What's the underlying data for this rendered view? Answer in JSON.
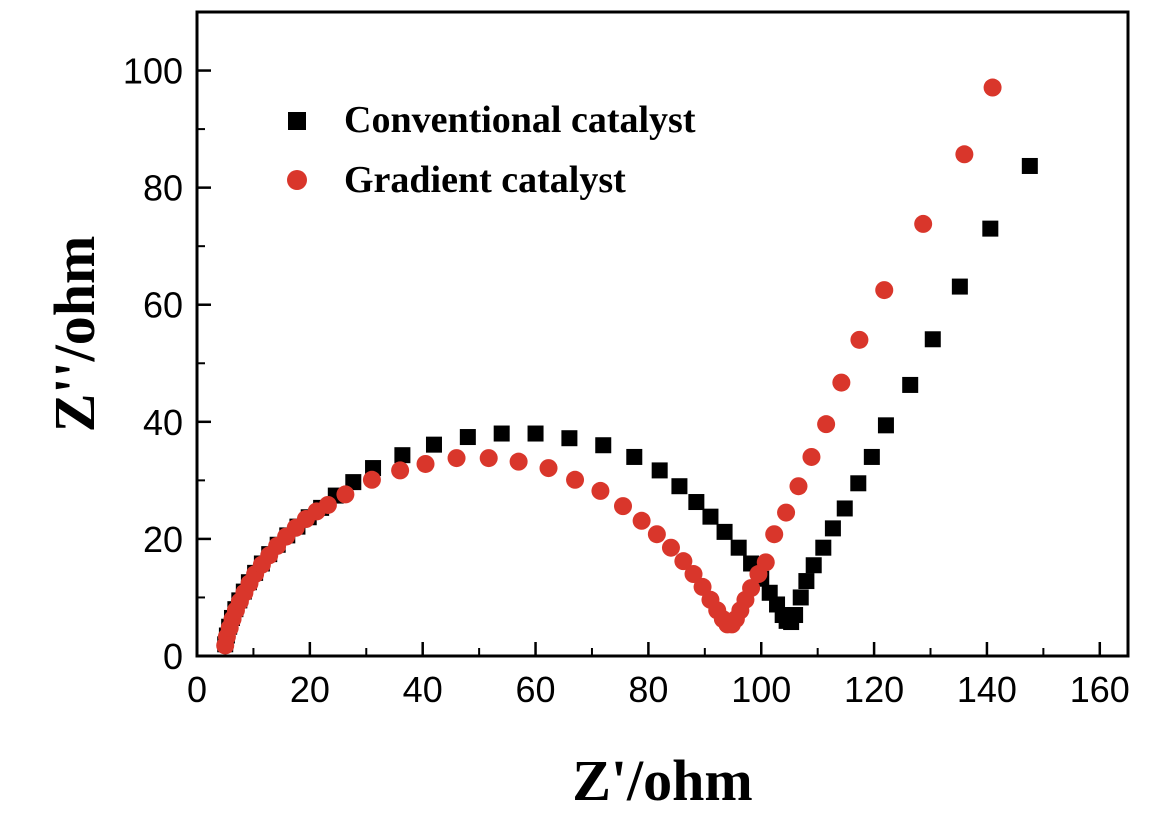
{
  "chart_data": {
    "type": "scatter",
    "title": "",
    "xlabel": "Z'/ohm",
    "ylabel": "Z''/ohm",
    "xlim": [
      0,
      165
    ],
    "ylim": [
      0,
      110
    ],
    "xticks": [
      0,
      20,
      40,
      60,
      80,
      100,
      120,
      140,
      160
    ],
    "yticks": [
      0,
      20,
      40,
      60,
      80,
      100
    ],
    "xtick_labels": [
      "0",
      "20",
      "40",
      "60",
      "80",
      "100",
      "120",
      "140",
      "160"
    ],
    "ytick_labels": [
      "0",
      "20",
      "40",
      "60",
      "80",
      "100"
    ],
    "grid": false,
    "legend_position": "top-left",
    "series": [
      {
        "name": "Conventional catalyst",
        "marker": "square",
        "color": "#000000",
        "points": [
          [
            5.0,
            2.0
          ],
          [
            5.3,
            3.5
          ],
          [
            5.7,
            5.0
          ],
          [
            6.2,
            6.5
          ],
          [
            6.8,
            8.0
          ],
          [
            7.5,
            9.5
          ],
          [
            8.3,
            11.0
          ],
          [
            9.2,
            12.6
          ],
          [
            10.3,
            14.2
          ],
          [
            11.5,
            15.8
          ],
          [
            12.8,
            17.4
          ],
          [
            14.3,
            19.0
          ],
          [
            16.0,
            20.6
          ],
          [
            17.8,
            22.1
          ],
          [
            19.8,
            23.7
          ],
          [
            22.0,
            25.3
          ],
          [
            24.6,
            27.4
          ],
          [
            27.7,
            29.7
          ],
          [
            31.2,
            32.1
          ],
          [
            36.4,
            34.3
          ],
          [
            42.0,
            36.1
          ],
          [
            48.0,
            37.4
          ],
          [
            54.0,
            38.0
          ],
          [
            60.0,
            38.0
          ],
          [
            66.0,
            37.2
          ],
          [
            72.0,
            36.0
          ],
          [
            77.5,
            34.0
          ],
          [
            82.0,
            31.7
          ],
          [
            85.5,
            29.0
          ],
          [
            88.5,
            26.3
          ],
          [
            91.0,
            23.8
          ],
          [
            93.5,
            21.2
          ],
          [
            96.0,
            18.5
          ],
          [
            98.2,
            15.8
          ],
          [
            100.0,
            13.2
          ],
          [
            101.5,
            10.8
          ],
          [
            102.8,
            8.8
          ],
          [
            103.8,
            7.0
          ],
          [
            104.5,
            6.0
          ],
          [
            105.3,
            5.8
          ],
          [
            106.0,
            7.0
          ],
          [
            107.0,
            10.0
          ],
          [
            108.0,
            12.8
          ],
          [
            109.3,
            15.5
          ],
          [
            111.0,
            18.5
          ],
          [
            112.7,
            21.8
          ],
          [
            114.8,
            25.2
          ],
          [
            117.2,
            29.5
          ],
          [
            119.6,
            34.0
          ],
          [
            122.1,
            39.4
          ],
          [
            126.4,
            46.3
          ],
          [
            130.4,
            54.1
          ],
          [
            135.2,
            63.1
          ],
          [
            140.6,
            73.0
          ],
          [
            147.6,
            83.7
          ]
        ]
      },
      {
        "name": "Gradient catalyst",
        "marker": "circle",
        "color": "#d9362b",
        "points": [
          [
            5.0,
            1.8
          ],
          [
            5.3,
            3.3
          ],
          [
            5.8,
            4.8
          ],
          [
            6.3,
            6.3
          ],
          [
            6.9,
            7.8
          ],
          [
            7.6,
            9.3
          ],
          [
            8.4,
            10.8
          ],
          [
            9.3,
            12.4
          ],
          [
            10.3,
            14.0
          ],
          [
            11.5,
            15.6
          ],
          [
            12.8,
            17.2
          ],
          [
            14.2,
            18.8
          ],
          [
            15.8,
            20.4
          ],
          [
            17.5,
            21.9
          ],
          [
            19.3,
            23.4
          ],
          [
            21.2,
            24.7
          ],
          [
            23.2,
            25.8
          ],
          [
            26.3,
            27.6
          ],
          [
            31.0,
            30.1
          ],
          [
            36.0,
            31.7
          ],
          [
            40.5,
            32.8
          ],
          [
            46.0,
            33.8
          ],
          [
            51.7,
            33.8
          ],
          [
            57.0,
            33.2
          ],
          [
            62.3,
            32.1
          ],
          [
            67.0,
            30.1
          ],
          [
            71.5,
            28.2
          ],
          [
            75.5,
            25.6
          ],
          [
            78.8,
            23.1
          ],
          [
            81.5,
            20.8
          ],
          [
            84.0,
            18.5
          ],
          [
            86.2,
            16.2
          ],
          [
            88.0,
            14.0
          ],
          [
            89.6,
            11.8
          ],
          [
            91.0,
            9.6
          ],
          [
            92.2,
            7.8
          ],
          [
            93.2,
            6.3
          ],
          [
            94.0,
            5.4
          ],
          [
            94.8,
            5.4
          ],
          [
            95.5,
            6.3
          ],
          [
            96.3,
            7.8
          ],
          [
            97.2,
            9.6
          ],
          [
            98.2,
            11.6
          ],
          [
            99.5,
            14.0
          ],
          [
            100.8,
            16.0
          ],
          [
            102.3,
            20.8
          ],
          [
            104.4,
            24.5
          ],
          [
            106.6,
            29.0
          ],
          [
            108.9,
            34.0
          ],
          [
            111.5,
            39.6
          ],
          [
            114.2,
            46.7
          ],
          [
            117.4,
            54.0
          ],
          [
            121.8,
            62.5
          ],
          [
            128.7,
            73.8
          ],
          [
            136.0,
            85.7
          ],
          [
            141.0,
            97.1
          ]
        ]
      }
    ]
  }
}
